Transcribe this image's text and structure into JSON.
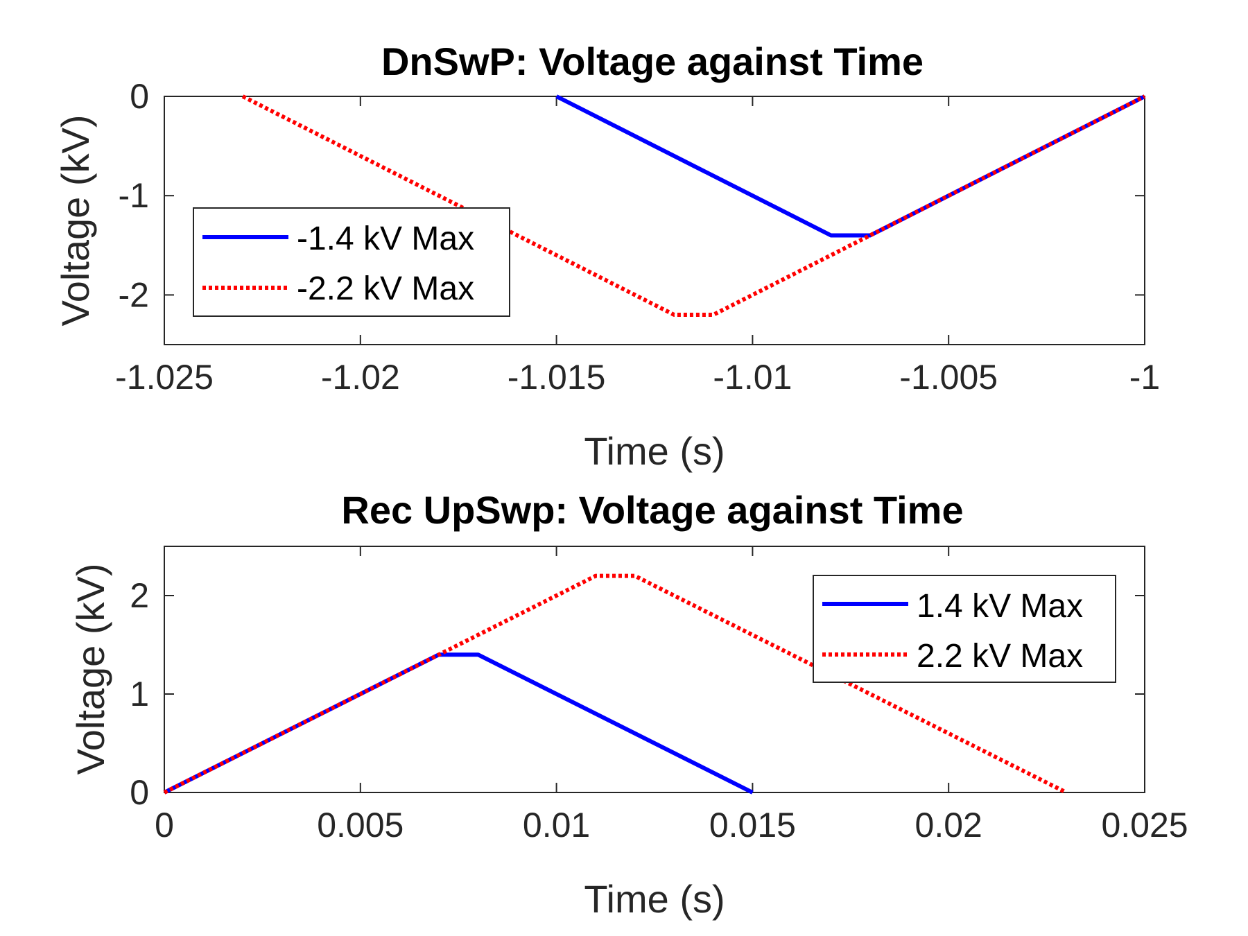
{
  "chart_data": [
    {
      "type": "line",
      "title": "DnSwP: Voltage against Time",
      "xlabel": "Time (s)",
      "ylabel": "Voltage (kV)",
      "xlim": [
        -1.025,
        -1.0
      ],
      "ylim": [
        -2.5,
        0
      ],
      "xticks": [
        -1.025,
        -1.02,
        -1.015,
        -1.01,
        -1.005,
        -1.0
      ],
      "xtick_labels": [
        "-1.025",
        "-1.02",
        "-1.015",
        "-1.01",
        "-1.005",
        "-1"
      ],
      "yticks": [
        0,
        -1,
        -2
      ],
      "ytick_labels": [
        "0",
        "-1",
        "-2"
      ],
      "grid": false,
      "legend_position": "middle-left",
      "series": [
        {
          "name": "-1.4 kV Max",
          "color": "#0000ff",
          "style": "solid",
          "x": [
            -1.015,
            -1.008,
            -1.007,
            -1.0
          ],
          "y": [
            0,
            -1.4,
            -1.4,
            0
          ]
        },
        {
          "name": "-2.2 kV Max",
          "color": "#ff0000",
          "style": "dotted",
          "x": [
            -1.023,
            -1.012,
            -1.011,
            -1.0
          ],
          "y": [
            0,
            -2.2,
            -2.2,
            0
          ]
        }
      ]
    },
    {
      "type": "line",
      "title": "Rec UpSwp: Voltage against Time",
      "xlabel": "Time (s)",
      "ylabel": "Voltage (kV)",
      "xlim": [
        0,
        0.025
      ],
      "ylim": [
        0,
        2.5
      ],
      "xticks": [
        0,
        0.005,
        0.01,
        0.015,
        0.02,
        0.025
      ],
      "xtick_labels": [
        "0",
        "0.005",
        "0.01",
        "0.015",
        "0.02",
        "0.025"
      ],
      "yticks": [
        0,
        1,
        2
      ],
      "ytick_labels": [
        "0",
        "1",
        "2"
      ],
      "grid": false,
      "legend_position": "top-right",
      "series": [
        {
          "name": "1.4 kV Max",
          "color": "#0000ff",
          "style": "solid",
          "x": [
            0,
            0.007,
            0.008,
            0.015
          ],
          "y": [
            0,
            1.4,
            1.4,
            0
          ]
        },
        {
          "name": "2.2 kV Max",
          "color": "#ff0000",
          "style": "dotted",
          "x": [
            0,
            0.011,
            0.012,
            0.023
          ],
          "y": [
            0,
            2.2,
            2.2,
            0
          ]
        }
      ]
    }
  ]
}
